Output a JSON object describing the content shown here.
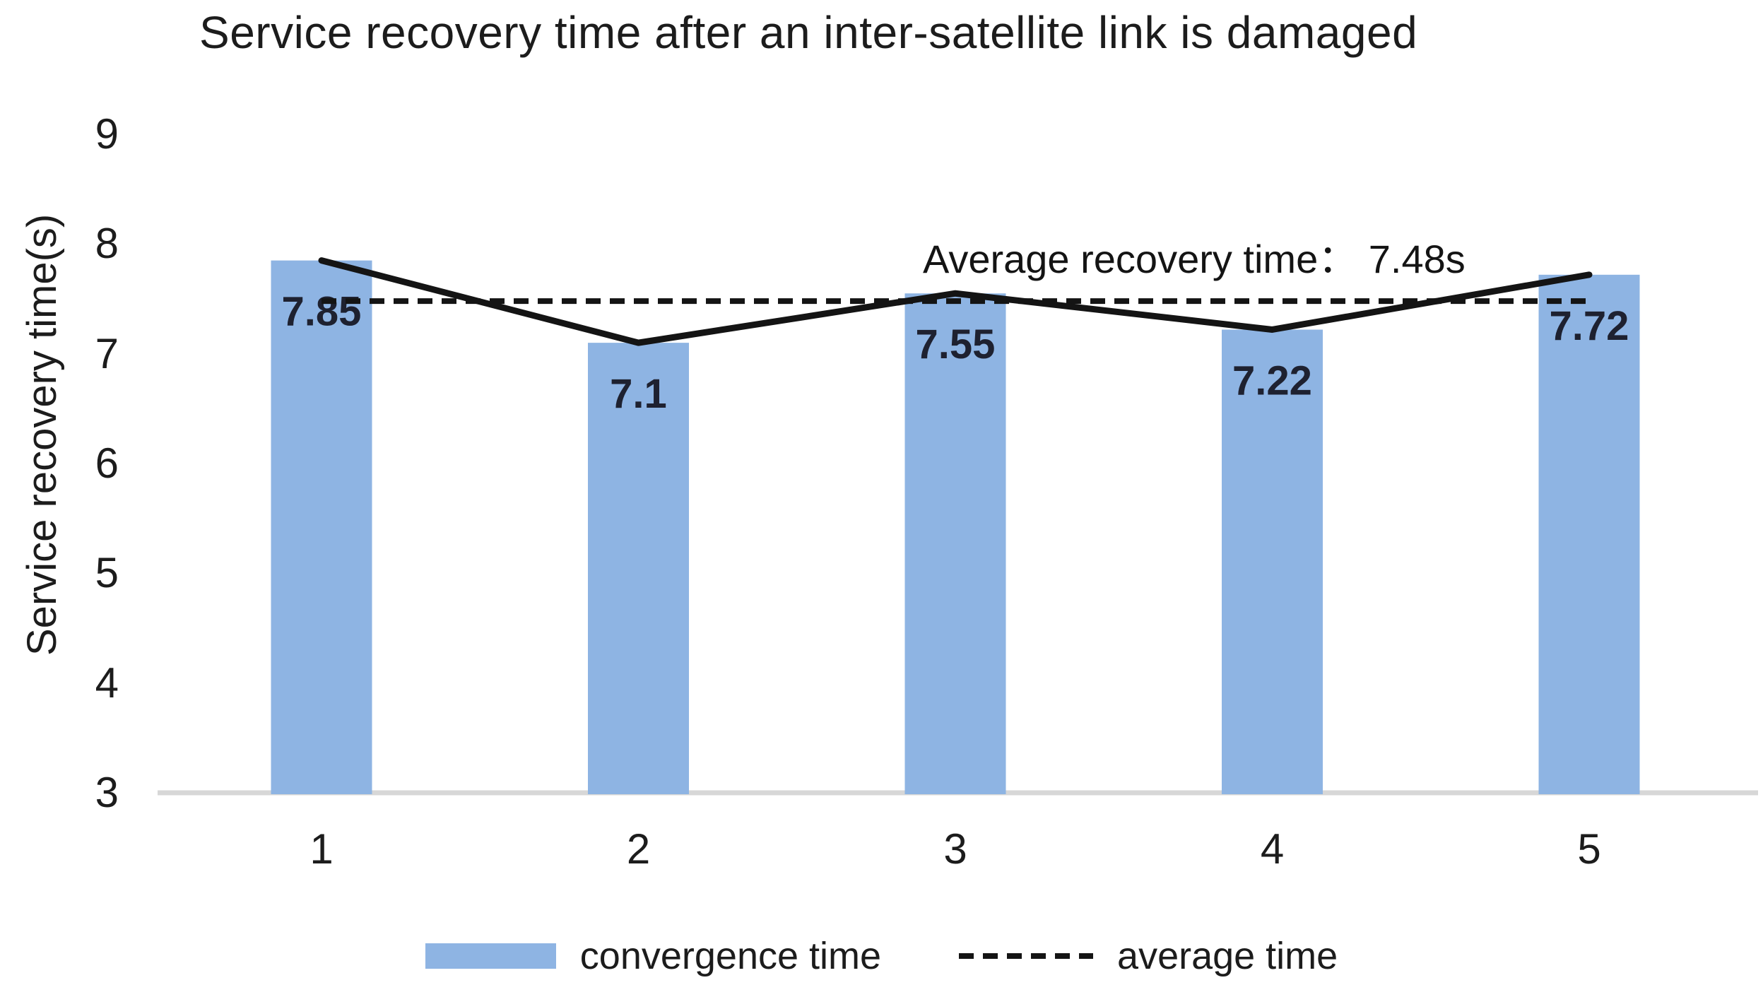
{
  "chart_data": {
    "type": "bar",
    "title": "Service recovery time after an inter-satellite link is damaged",
    "ylabel": "Service recovery time(s)",
    "xlabel": "",
    "categories": [
      "1",
      "2",
      "3",
      "4",
      "5"
    ],
    "series": [
      {
        "name": "convergence time",
        "type": "bar",
        "values": [
          7.85,
          7.1,
          7.55,
          7.22,
          7.72
        ],
        "color": "#8EB4E3"
      },
      {
        "name": "convergence time trend",
        "type": "line",
        "values": [
          7.85,
          7.1,
          7.55,
          7.22,
          7.72
        ],
        "color": "#141414",
        "in_legend": false
      },
      {
        "name": "average time",
        "type": "dashed-line",
        "value": 7.48,
        "color": "#141414"
      }
    ],
    "data_labels": [
      "7.85",
      "7.1",
      "7.55",
      "7.22",
      "7.72"
    ],
    "ylim": [
      3,
      9
    ],
    "yticks": [
      9,
      8,
      7,
      6,
      5,
      4,
      3
    ],
    "grid": false,
    "annotation": "Average recovery time： 7.48s",
    "average_value": 7.48,
    "legend_position": "bottom",
    "legend": [
      {
        "label": "convergence time",
        "swatch": "bar"
      },
      {
        "label": "average time",
        "swatch": "dashed"
      }
    ],
    "colors": {
      "bar": "#8EB4E3",
      "line": "#141414",
      "axis": "#D7D7D7",
      "bar_label": "#1E2130",
      "text": "#1C1C1C"
    }
  }
}
